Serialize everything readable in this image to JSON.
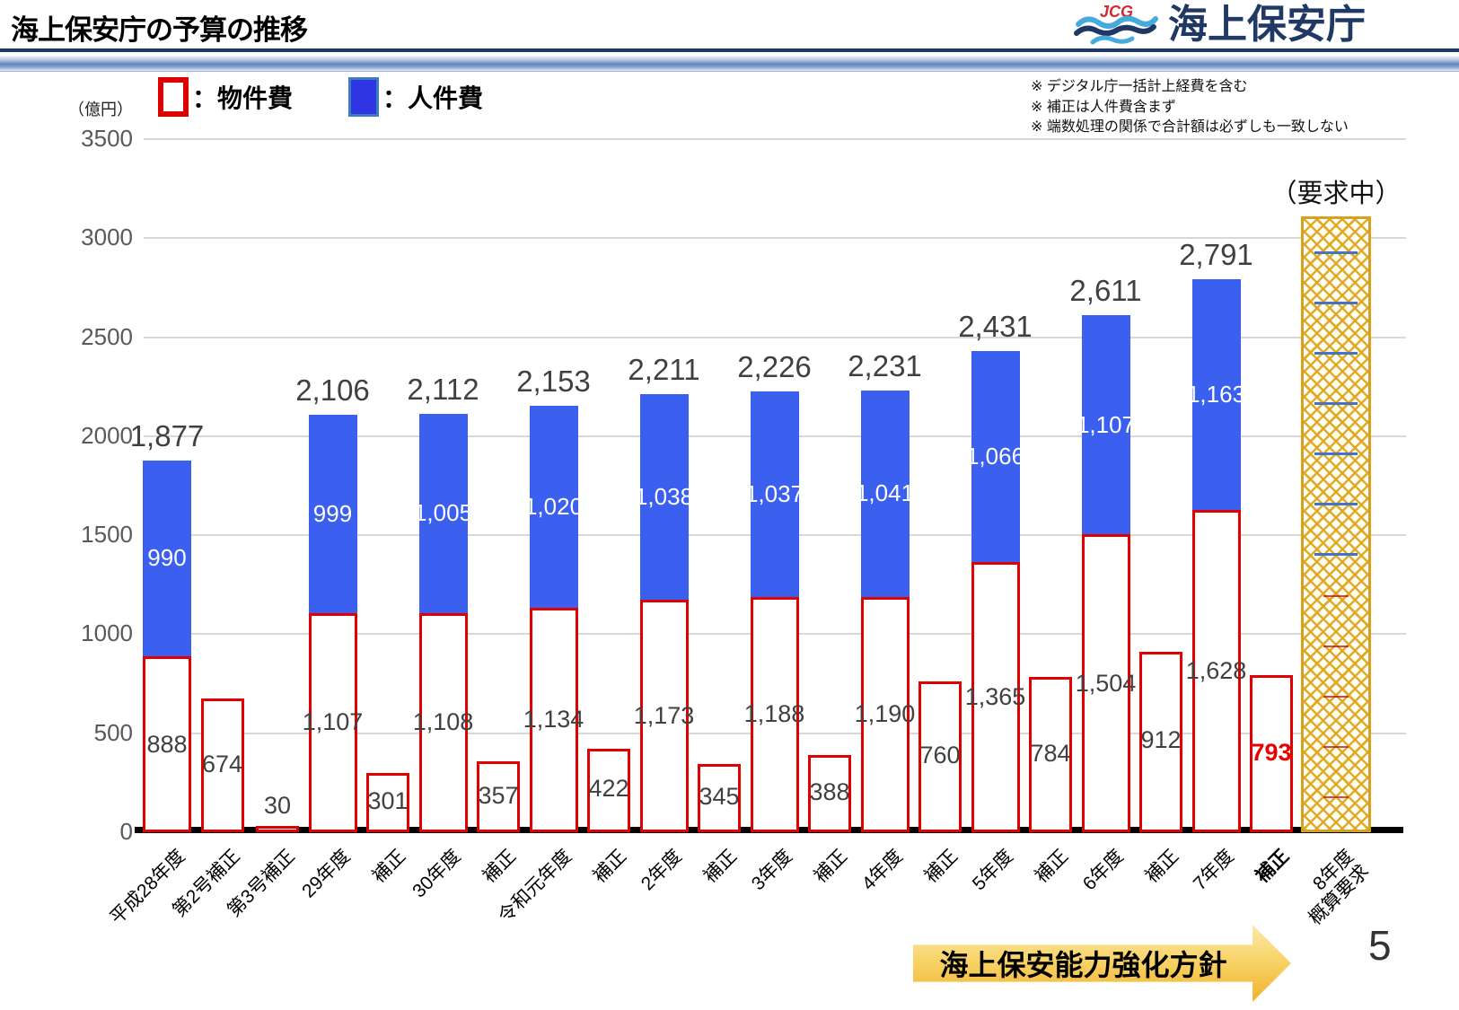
{
  "header": {
    "title": "海上保安庁の予算の推移",
    "agency_name": "海上保安庁",
    "logo_acronym": "JCG"
  },
  "notes": [
    "※ デジタル庁一括計上経費を含む",
    "※ 補正は人件費含まず",
    "※ 端数処理の関係で合計額は必ずしも一致しない"
  ],
  "axis_unit_label": "（億円）",
  "legend": {
    "bukkenhi_label": "：物件費",
    "jinkenhi_label": "：人件費"
  },
  "request_status_label": "（要求中）",
  "banner_text": "海上保安能力強化方針",
  "page_number": "5",
  "colors": {
    "bukkenhi_outline": "#E00000",
    "jinkenhi_fill": "#3B5FEF",
    "hosei_highlight_red": "#E60000",
    "request_hatch_gold": "#DFA71C",
    "banner_gold": "#F5BC33",
    "header_navy": "#1F3864"
  },
  "chart_data": {
    "type": "bar",
    "stacked": true,
    "unit": "億円",
    "ylabel": "（億円）",
    "ylim": [
      0,
      3500
    ],
    "ytick_interval": 500,
    "grid": true,
    "y_tick_labels": [
      "0",
      "500",
      "1000",
      "1500",
      "2000",
      "2500",
      "3000",
      "3500"
    ],
    "series_names": [
      "物件費",
      "人件費"
    ],
    "categories": [
      "平成28年度",
      "第2号補正",
      "第3号補正",
      "29年度",
      "補正",
      "30年度",
      "補正",
      "令和元年度",
      "補正",
      "2年度",
      "補正",
      "3年度",
      "補正",
      "4年度",
      "補正",
      "5年度",
      "補正",
      "6年度",
      "補正",
      "7年度",
      "補正",
      "8年度概算要求"
    ],
    "bars": [
      {
        "category": "平成28年度",
        "kind": "annual",
        "bukkenhi": 888,
        "jinkenhi": 990,
        "total": 1877,
        "bukkenhi_label": "888",
        "jinkenhi_label": "990",
        "total_label": "1,877"
      },
      {
        "category": "第2号補正",
        "kind": "hosei",
        "value": 674,
        "value_label": "674"
      },
      {
        "category": "第3号補正",
        "kind": "hosei",
        "value": 30,
        "value_label": "30"
      },
      {
        "category": "29年度",
        "kind": "annual",
        "bukkenhi": 1107,
        "jinkenhi": 999,
        "total": 2106,
        "bukkenhi_label": "1,107",
        "jinkenhi_label": "999",
        "total_label": "2,106"
      },
      {
        "category": "補正",
        "kind": "hosei",
        "value": 301,
        "value_label": "301"
      },
      {
        "category": "30年度",
        "kind": "annual",
        "bukkenhi": 1108,
        "jinkenhi": 1005,
        "total": 2112,
        "bukkenhi_label": "1,108",
        "jinkenhi_label": "1,005",
        "total_label": "2,112"
      },
      {
        "category": "補正",
        "kind": "hosei",
        "value": 357,
        "value_label": "357"
      },
      {
        "category": "令和元年度",
        "kind": "annual",
        "bukkenhi": 1134,
        "jinkenhi": 1020,
        "total": 2153,
        "bukkenhi_label": "1,134",
        "jinkenhi_label": "1,020",
        "total_label": "2,153"
      },
      {
        "category": "補正",
        "kind": "hosei",
        "value": 422,
        "value_label": "422"
      },
      {
        "category": "2年度",
        "kind": "annual",
        "bukkenhi": 1173,
        "jinkenhi": 1038,
        "total": 2211,
        "bukkenhi_label": "1,173",
        "jinkenhi_label": "1,038",
        "total_label": "2,211"
      },
      {
        "category": "補正",
        "kind": "hosei",
        "value": 345,
        "value_label": "345"
      },
      {
        "category": "3年度",
        "kind": "annual",
        "bukkenhi": 1188,
        "jinkenhi": 1037,
        "total": 2226,
        "bukkenhi_label": "1,188",
        "jinkenhi_label": "1,037",
        "total_label": "2,226"
      },
      {
        "category": "補正",
        "kind": "hosei",
        "value": 388,
        "value_label": "388"
      },
      {
        "category": "4年度",
        "kind": "annual",
        "bukkenhi": 1190,
        "jinkenhi": 1041,
        "total": 2231,
        "bukkenhi_label": "1,190",
        "jinkenhi_label": "1,041",
        "total_label": "2,231"
      },
      {
        "category": "補正",
        "kind": "hosei",
        "value": 760,
        "value_label": "760"
      },
      {
        "category": "5年度",
        "kind": "annual",
        "bukkenhi": 1365,
        "jinkenhi": 1066,
        "total": 2431,
        "bukkenhi_label": "1,365",
        "jinkenhi_label": "1,066",
        "total_label": "2,431"
      },
      {
        "category": "補正",
        "kind": "hosei",
        "value": 784,
        "value_label": "784"
      },
      {
        "category": "6年度",
        "kind": "annual",
        "bukkenhi": 1504,
        "jinkenhi": 1107,
        "total": 2611,
        "bukkenhi_label": "1,504",
        "jinkenhi_label": "1,107",
        "total_label": "2,611"
      },
      {
        "category": "補正",
        "kind": "hosei",
        "value": 912,
        "value_label": "912"
      },
      {
        "category": "7年度",
        "kind": "annual",
        "bukkenhi": 1628,
        "jinkenhi": 1163,
        "total": 2791,
        "bukkenhi_label": "1,628",
        "jinkenhi_label": "1,163",
        "total_label": "2,791"
      },
      {
        "category": "補正",
        "kind": "hosei",
        "value": 793,
        "value_label": "793",
        "highlight": true
      },
      {
        "category": "8年度概算要求",
        "category_lines": [
          "8年度",
          "概算要求"
        ],
        "kind": "request",
        "status_label": "（要求中）",
        "approx_bar_top_value": 3110
      }
    ]
  }
}
